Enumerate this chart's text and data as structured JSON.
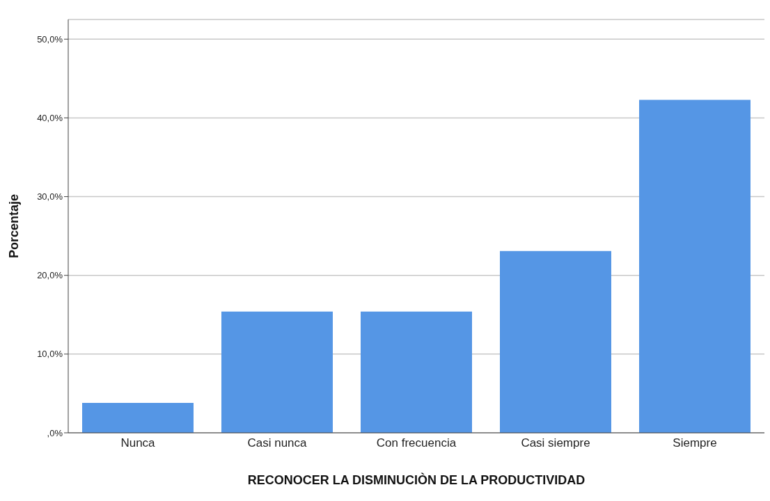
{
  "chart_data": {
    "type": "bar",
    "xlabel": "RECONOCER LA DISMINUCIÒN DE LA PRODUCTIVIDAD",
    "ylabel": "Porcentaje",
    "categories": [
      "Nunca",
      "Casi nunca",
      "Con frecuencia",
      "Casi siempre",
      "Siempre"
    ],
    "values": [
      3.8,
      15.4,
      15.4,
      23.1,
      42.3
    ],
    "color": "#5596e5",
    "ylim": [
      0,
      52.5
    ],
    "yticks": [
      {
        "value": 0,
        "label": ",0%"
      },
      {
        "value": 10,
        "label": "10,0%"
      },
      {
        "value": 20,
        "label": "20,0%"
      },
      {
        "value": 30,
        "label": "30,0%"
      },
      {
        "value": 40,
        "label": "40,0%"
      },
      {
        "value": 50,
        "label": "50,0%"
      }
    ],
    "grid": "y"
  }
}
